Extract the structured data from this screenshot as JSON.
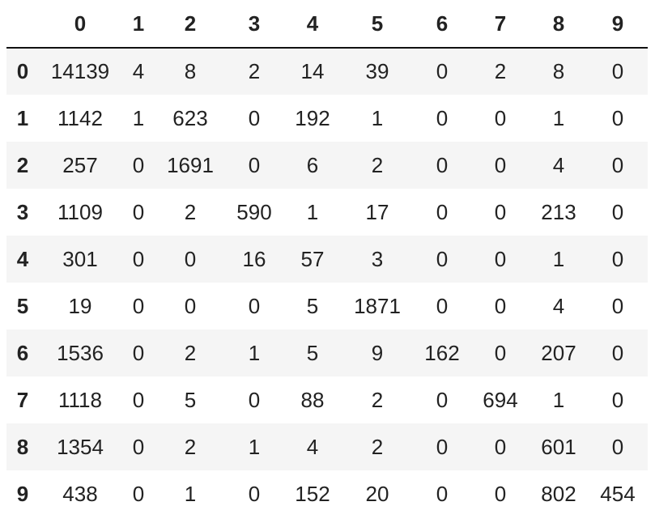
{
  "table": {
    "columns": [
      "0",
      "1",
      "2",
      "3",
      "4",
      "5",
      "6",
      "7",
      "8",
      "9"
    ],
    "rows": [
      {
        "index": "0",
        "values": [
          "14139",
          "4",
          "8",
          "2",
          "14",
          "39",
          "0",
          "2",
          "8",
          "0"
        ]
      },
      {
        "index": "1",
        "values": [
          "1142",
          "1",
          "623",
          "0",
          "192",
          "1",
          "0",
          "0",
          "1",
          "0"
        ]
      },
      {
        "index": "2",
        "values": [
          "257",
          "0",
          "1691",
          "0",
          "6",
          "2",
          "0",
          "0",
          "4",
          "0"
        ]
      },
      {
        "index": "3",
        "values": [
          "1109",
          "0",
          "2",
          "590",
          "1",
          "17",
          "0",
          "0",
          "213",
          "0"
        ]
      },
      {
        "index": "4",
        "values": [
          "301",
          "0",
          "0",
          "16",
          "57",
          "3",
          "0",
          "0",
          "1",
          "0"
        ]
      },
      {
        "index": "5",
        "values": [
          "19",
          "0",
          "0",
          "0",
          "5",
          "1871",
          "0",
          "0",
          "4",
          "0"
        ]
      },
      {
        "index": "6",
        "values": [
          "1536",
          "0",
          "2",
          "1",
          "5",
          "9",
          "162",
          "0",
          "207",
          "0"
        ]
      },
      {
        "index": "7",
        "values": [
          "1118",
          "0",
          "5",
          "0",
          "88",
          "2",
          "0",
          "694",
          "1",
          "0"
        ]
      },
      {
        "index": "8",
        "values": [
          "1354",
          "0",
          "2",
          "1",
          "4",
          "2",
          "0",
          "0",
          "601",
          "0"
        ]
      },
      {
        "index": "9",
        "values": [
          "438",
          "0",
          "1",
          "0",
          "152",
          "20",
          "0",
          "0",
          "802",
          "454"
        ]
      }
    ]
  }
}
